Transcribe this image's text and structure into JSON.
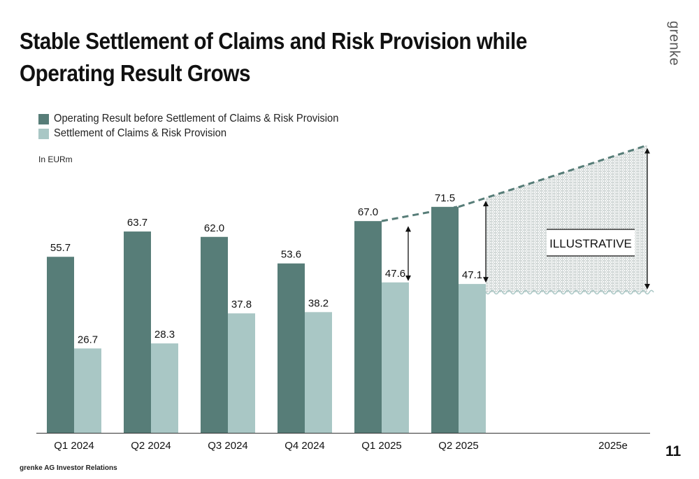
{
  "slide": {
    "title": "Stable Settlement of Claims and Risk Provision while Operating Result Grows",
    "logo_text": "grenke",
    "unit_label": "In EURm",
    "footer": "grenke AG Investor Relations",
    "page_number": "11"
  },
  "legend": [
    {
      "label": "Operating Result before Settlement of Claims & Risk Provision",
      "color": "#577d78"
    },
    {
      "label": "Settlement of Claims & Risk Provision",
      "color": "#a9c7c5"
    }
  ],
  "chart_data": {
    "type": "bar",
    "categories": [
      "Q1 2024",
      "Q2 2024",
      "Q3 2024",
      "Q4 2024",
      "Q1 2025",
      "Q2 2025",
      "2025e"
    ],
    "series": [
      {
        "name": "Operating Result before Settlement of Claims & Risk Provision",
        "color": "#577d78",
        "values": [
          55.7,
          63.7,
          62.0,
          53.6,
          67.0,
          71.5,
          null
        ],
        "labels": [
          "55.7",
          "63.7",
          "62.0",
          "53.6",
          "67.0",
          "71.5",
          ""
        ]
      },
      {
        "name": "Settlement of Claims & Risk Provision",
        "color": "#a9c7c5",
        "values": [
          26.7,
          28.3,
          37.8,
          38.2,
          47.6,
          47.1,
          null
        ],
        "labels": [
          "26.7",
          "28.3",
          "37.8",
          "38.2",
          "47.6",
          "47.1",
          ""
        ]
      }
    ],
    "ylim": [
      0,
      100
    ],
    "grid": false,
    "legend_position": "top-left",
    "annotation": "ILLUSTRATIVE",
    "projection": {
      "line_style": "dashed",
      "end_value": 91.0,
      "settlement_level": 44.5
    }
  }
}
